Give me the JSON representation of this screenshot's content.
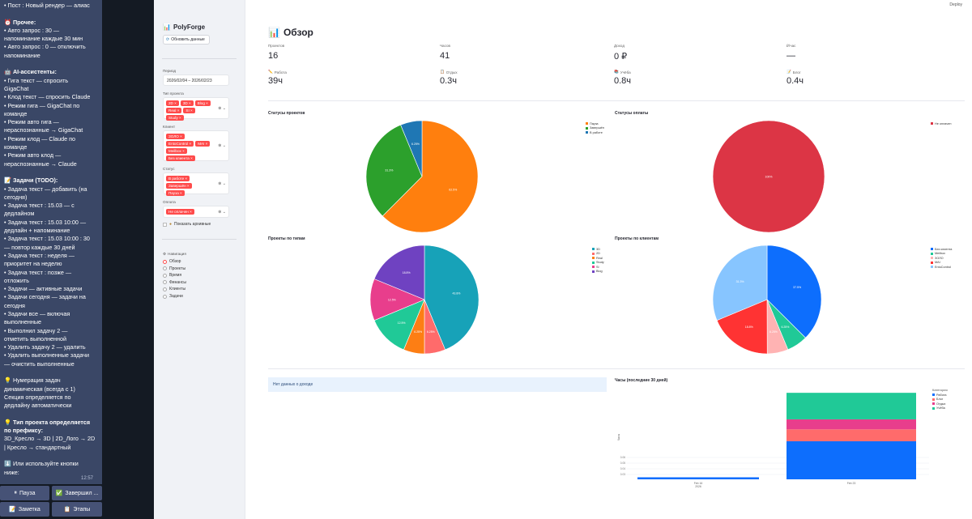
{
  "chat": {
    "lines": [
      "• Пост : Новый рендер — алиас",
      "",
      "⏰ **Прочее:**",
      "• Авто запрос : 30 —",
      "напоминание каждые 30 мин",
      "• Авто запрос : 0 — отключить",
      "напоминание",
      "",
      "🤖 **AI-ассистенты:**",
      "• Гига текст — спросить",
      "GigaChat",
      "• Клод текст — спросить Claude",
      "• Режим гига — GigaChat по",
      "команде",
      "• Режим авто гига —",
      "нераспознанные → GigaChat",
      "• Режим клод — Claude по",
      "команде",
      "• Режим авто клод —",
      "нераспознанные → Claude",
      "",
      "📝 **Задачи (TODO):**",
      "• Задача текст — добавить (на",
      "сегодня)",
      "• Задача текст : 15.03 — с",
      "дедлайном",
      "• Задача текст : 15.03 10:00 —",
      "дедлайн + напоминание",
      "• Задача текст : 15.03 10:00 : 30",
      "— повтор каждые 30 дней",
      "• Задача текст : неделя —",
      "приоритет на неделю",
      "• Задача текст : позже —",
      "отложить",
      "• Задачи — активные задачи",
      "• Задачи сегодня — задачи на",
      "сегодня",
      "• Задачи все — включая",
      "выполненные",
      "• Выполнил задачу 2 —",
      "отметить выполненной",
      "• Удалить задачу 2 — удалить",
      "• Удалить выполненные задачи",
      "— очистить выполненные",
      "",
      "💡 Нумерация задач",
      "динамическая (всегда с 1)",
      "Секция определяется по",
      "дедлайну автоматически",
      "",
      "💡 **Тип проекта определяется**",
      "**по префиксу:**",
      "3D_Кресло → 3D | 2D_Лого → 2D",
      "| Кресло → стандартный",
      "",
      "⬇️ Или используйте кнопки",
      "ниже:",
      "",
      "📝 Пишу: **Статистика за**",
      "**неделю** — Написание"
    ],
    "time": "12:57",
    "buttons": [
      {
        "icon": "⏸",
        "label": "Пауза"
      },
      {
        "icon": "✅",
        "label": "Завершил ..."
      },
      {
        "icon": "📝",
        "label": "Заметка"
      },
      {
        "icon": "📋",
        "label": "Этапы"
      }
    ]
  },
  "sidebar": {
    "brand": "PolyForge",
    "brand_icon": "📊",
    "refresh_label": "Обновить данные",
    "period_label": "Период",
    "period_value": "2026/02/04 – 2026/02/23",
    "type_label": "Тип проекта",
    "type_tags": [
      "2D",
      "3D",
      "Blog",
      "Real",
      "SI",
      "Study"
    ],
    "client_label": "Клиент",
    "client_tags": [
      "ЗОЛО",
      "EntoControl",
      "MAI",
      "Meilbox",
      "Без клиента"
    ],
    "status_label": "Статус",
    "status_tags": [
      "В работе",
      "Завершён",
      "Пауза"
    ],
    "payment_label": "Оплата",
    "payment_tags": [
      "Не оплачен"
    ],
    "archive_label": "Показать архивные",
    "nav_label": "Навигация",
    "nav_items": [
      "Обзор",
      "Проекты",
      "Время",
      "Финансы",
      "Клиенты",
      "Задачи"
    ],
    "nav_selected": 0
  },
  "main": {
    "deploy": "Deploy",
    "title": "Обзор",
    "title_icon": "📊",
    "metrics_row1": [
      {
        "label": "Проектов",
        "value": "16"
      },
      {
        "label": "Часов",
        "value": "41"
      },
      {
        "label": "Доход",
        "value": "0 ₽"
      },
      {
        "label": "₽/час",
        "value": "—"
      }
    ],
    "metrics_row2": [
      {
        "icon": "✏️",
        "label": "Работа",
        "value": "39ч"
      },
      {
        "icon": "📋",
        "label": "Отдых",
        "value": "0.3ч"
      },
      {
        "icon": "📚",
        "label": "Учёба",
        "value": "0.8ч"
      },
      {
        "icon": "📝",
        "label": "Блог",
        "value": "0.4ч"
      }
    ],
    "info_text": "Нет данных о доходе"
  },
  "chart_data": [
    {
      "type": "pie",
      "title": "Статусы проектов",
      "labels": [
        "Пауза",
        "Завершён",
        "В работе"
      ],
      "values": [
        62.5,
        31.3,
        6.25
      ],
      "colors": [
        "#ff7f0e",
        "#2ca02c",
        "#1f77b4"
      ],
      "slice_labels": [
        "62.5%",
        "31.3%",
        "6.25%"
      ]
    },
    {
      "type": "pie",
      "title": "Статусы оплаты",
      "labels": [
        "Не оплачен"
      ],
      "values": [
        100
      ],
      "colors": [
        "#dc3545"
      ],
      "slice_labels": [
        "100%"
      ]
    },
    {
      "type": "pie",
      "title": "Проекты по типам",
      "labels": [
        "3D",
        "2D",
        "Real",
        "Study",
        "SI",
        "Blog"
      ],
      "values": [
        43.8,
        6.25,
        6.25,
        12.5,
        12.5,
        18.8
      ],
      "colors": [
        "#17a2b8",
        "#ff6b6b",
        "#fd7e14",
        "#20c997",
        "#e83e8c",
        "#6f42c1"
      ],
      "slice_labels": [
        "43.8%",
        "6.25%",
        "6.25%",
        "12.5%",
        "12.5%",
        "18.8%"
      ]
    },
    {
      "type": "pie",
      "title": "Проекты по клиентам",
      "labels": [
        "Без клиента",
        "Meilbox",
        "ЗОЛО",
        "MAI",
        "EntoControl"
      ],
      "values": [
        37.5,
        6.25,
        6.25,
        18.8,
        31.3
      ],
      "colors": [
        "#0d6efd",
        "#20c997",
        "#ffb3b3",
        "#ff3333",
        "#87c5ff"
      ],
      "slice_labels": [
        "37.5%",
        "6.25%",
        "6.25%",
        "18.8%",
        "31.3%"
      ]
    },
    {
      "type": "bar",
      "title": "Часы (последние 30 дней)",
      "ylabel": "Часы",
      "categories": [
        "Feb 16",
        "Feb 23"
      ],
      "category_sub": [
        "2026",
        ""
      ],
      "legend_title": "Категория",
      "series": [
        {
          "name": "Работа",
          "values": [
            0.06,
            12.2
          ],
          "color": "#0d6efd"
        },
        {
          "name": "Блог",
          "values": [
            0,
            3.8
          ],
          "color": "#ff6b6b"
        },
        {
          "name": "Отдых",
          "values": [
            0,
            3.2
          ],
          "color": "#e83e8c"
        },
        {
          "name": "Учёба",
          "values": [
            0,
            8.5
          ],
          "color": "#20c997"
        }
      ],
      "yticks": [
        "0.03",
        "0.04",
        "0.05",
        "0.06"
      ]
    }
  ]
}
